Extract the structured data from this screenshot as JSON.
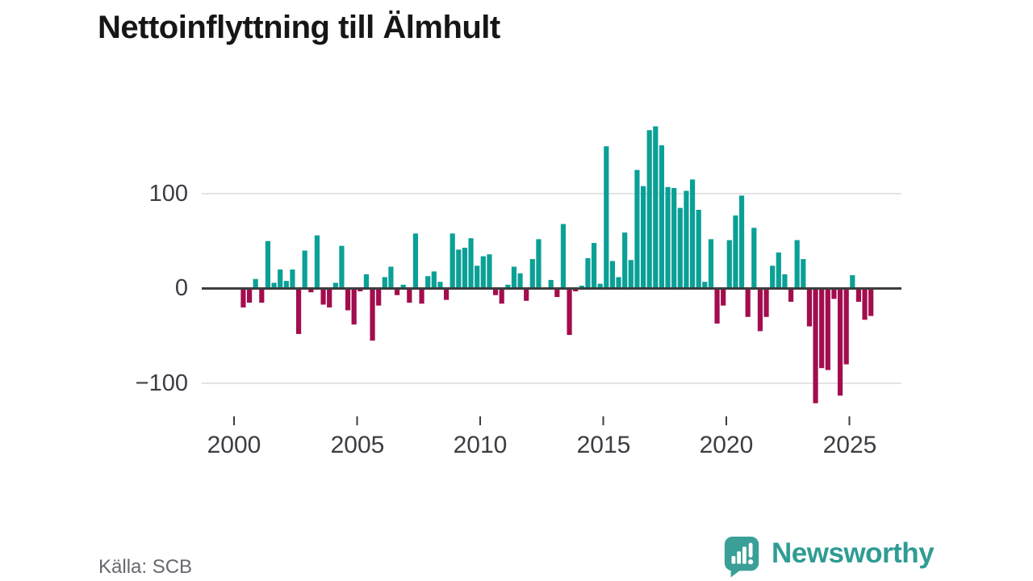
{
  "title": "Nettoinflyttning till Älmhult",
  "source": "Källa: SCB",
  "brand": {
    "name": "Newsworthy"
  },
  "colors": {
    "positive": "#0aa096",
    "negative": "#a30d4e",
    "zero_axis": "#3d3d3d",
    "grid": "#e3e3e3",
    "tick_text": "#3c3c43",
    "muted_text": "#67676f",
    "brand_teal": "#2f9c94",
    "brand_icon_teal": "#3aa097"
  },
  "chart_data": {
    "type": "bar",
    "title": "Nettoinflyttning till Älmhult",
    "periodicity": "quarterly",
    "start_period": "2000 Q2",
    "end_period": "2025 Q4",
    "x_tick_labels": [
      "2000",
      "2005",
      "2010",
      "2015",
      "2020",
      "2025"
    ],
    "y_tick_labels": [
      "100",
      "0",
      "−100"
    ],
    "y_ticks": [
      100,
      0,
      -100
    ],
    "ylim": [
      -130,
      185
    ],
    "grid": "horizontal gridlines at 100 and -100, dark zero baseline",
    "legend": "none",
    "series": [
      {
        "name": "Nettoinflyttning",
        "values": [
          -20,
          -15,
          10,
          -15,
          50,
          6,
          20,
          8,
          20,
          -48,
          40,
          -4,
          56,
          -17,
          -20,
          6,
          45,
          -23,
          -38,
          -3,
          15,
          -55,
          -18,
          12,
          23,
          -7,
          4,
          -15,
          58,
          -16,
          13,
          18,
          7,
          -12,
          58,
          41,
          43,
          53,
          24,
          34,
          36,
          -7,
          -16,
          4,
          23,
          16,
          -13,
          31,
          52,
          0,
          9,
          -9,
          68,
          -49,
          -3,
          3,
          32,
          48,
          5,
          150,
          29,
          12,
          59,
          30,
          125,
          108,
          167,
          171,
          151,
          107,
          106,
          85,
          103,
          115,
          83,
          7,
          52,
          -37,
          -18,
          51,
          77,
          98,
          -30,
          64,
          -45,
          -30,
          24,
          38,
          15,
          -14,
          51,
          31,
          -40,
          -121,
          -84,
          -86,
          -11,
          -113,
          -80,
          14,
          -14,
          -33,
          -29
        ]
      }
    ]
  }
}
